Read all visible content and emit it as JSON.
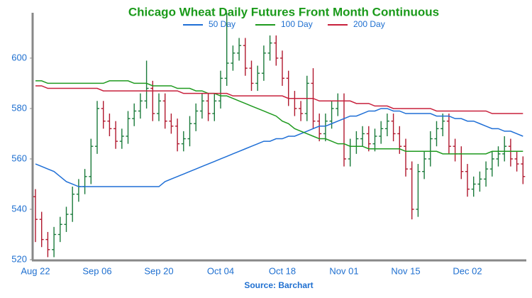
{
  "chart_data": {
    "type": "ohlc",
    "title": "Chicago Wheat Daily Futures Front Month Continuous",
    "source": "Source: Barchart",
    "categories": [
      "Aug 22",
      null,
      null,
      null,
      null,
      null,
      null,
      null,
      null,
      null,
      "Sep 06",
      null,
      null,
      null,
      null,
      null,
      null,
      null,
      null,
      null,
      "Sep 20",
      null,
      null,
      null,
      null,
      null,
      null,
      null,
      null,
      null,
      "Oct 04",
      null,
      null,
      null,
      null,
      null,
      null,
      null,
      null,
      null,
      "Oct 18",
      null,
      null,
      null,
      null,
      null,
      null,
      null,
      null,
      null,
      "Nov 01",
      null,
      null,
      null,
      null,
      null,
      null,
      null,
      null,
      null,
      "Nov 15",
      null,
      null,
      null,
      null,
      null,
      null,
      null,
      null,
      null,
      "Dec 02",
      null,
      null,
      null,
      null,
      null,
      null,
      null,
      null,
      null
    ],
    "open": [
      545,
      536,
      528,
      524,
      530,
      534,
      538,
      546,
      549,
      553,
      565,
      580,
      575,
      572,
      567,
      569,
      576,
      579,
      583,
      588,
      578,
      583,
      575,
      573,
      566,
      568,
      574,
      579,
      583,
      578,
      583,
      592,
      598,
      602,
      605,
      596,
      590,
      594,
      602,
      606,
      600,
      592,
      584,
      580,
      578,
      590,
      575,
      570,
      575,
      580,
      583,
      560,
      565,
      568,
      570,
      566,
      569,
      572,
      575,
      570,
      565,
      556,
      540,
      555,
      560,
      568,
      572,
      575,
      565,
      562,
      555,
      548,
      550,
      552,
      556,
      560,
      562,
      565,
      560,
      558
    ],
    "high": [
      548,
      539,
      531,
      533,
      537,
      541,
      549,
      552,
      556,
      568,
      583,
      583,
      578,
      575,
      572,
      579,
      582,
      586,
      599,
      591,
      586,
      586,
      578,
      576,
      571,
      577,
      582,
      586,
      586,
      586,
      595,
      618,
      605,
      608,
      608,
      599,
      597,
      605,
      609,
      609,
      603,
      595,
      587,
      583,
      593,
      596,
      578,
      578,
      583,
      586,
      586,
      568,
      571,
      573,
      573,
      572,
      575,
      578,
      578,
      573,
      568,
      559,
      558,
      563,
      571,
      575,
      578,
      578,
      568,
      565,
      558,
      553,
      555,
      559,
      563,
      565,
      569,
      568,
      563,
      561
    ],
    "low": [
      527,
      525,
      521,
      521,
      527,
      531,
      535,
      543,
      546,
      550,
      562,
      572,
      569,
      564,
      564,
      566,
      573,
      576,
      580,
      575,
      575,
      572,
      570,
      563,
      563,
      565,
      571,
      576,
      575,
      575,
      580,
      589,
      595,
      599,
      593,
      587,
      587,
      591,
      599,
      597,
      589,
      581,
      577,
      575,
      575,
      572,
      567,
      567,
      572,
      577,
      557,
      557,
      562,
      565,
      563,
      563,
      566,
      569,
      567,
      562,
      553,
      536,
      537,
      552,
      557,
      565,
      569,
      562,
      559,
      552,
      545,
      545,
      547,
      549,
      553,
      557,
      559,
      557,
      555,
      550
    ],
    "close": [
      536,
      528,
      524,
      530,
      534,
      538,
      546,
      549,
      553,
      565,
      580,
      575,
      572,
      567,
      569,
      576,
      579,
      583,
      588,
      578,
      583,
      575,
      573,
      566,
      568,
      574,
      579,
      583,
      578,
      583,
      592,
      598,
      602,
      605,
      596,
      590,
      594,
      602,
      606,
      600,
      592,
      584,
      580,
      578,
      590,
      575,
      570,
      575,
      580,
      583,
      560,
      565,
      568,
      570,
      566,
      569,
      572,
      575,
      570,
      565,
      556,
      540,
      555,
      560,
      568,
      572,
      575,
      565,
      562,
      555,
      548,
      550,
      552,
      556,
      560,
      562,
      565,
      560,
      558,
      553
    ],
    "up_color": "#1a7a3a",
    "down_color": "#b0182e",
    "series": [
      {
        "name": "50 Day",
        "color": "#1f6fd6",
        "values": [
          558,
          557,
          556,
          555,
          553,
          551,
          550,
          549,
          549,
          549,
          549,
          549,
          549,
          549,
          549,
          549,
          549,
          549,
          549,
          549,
          549,
          551,
          552,
          553,
          554,
          555,
          556,
          557,
          558,
          559,
          560,
          561,
          562,
          563,
          564,
          565,
          566,
          567,
          567,
          568,
          568,
          569,
          569,
          570,
          571,
          572,
          573,
          573,
          574,
          575,
          576,
          577,
          577,
          578,
          579,
          579,
          580,
          580,
          579,
          579,
          578,
          578,
          578,
          578,
          578,
          577,
          577,
          577,
          576,
          576,
          575,
          575,
          574,
          573,
          572,
          572,
          571,
          571,
          570,
          569
        ]
      },
      {
        "name": "100 Day",
        "color": "#1f9a1f",
        "values": [
          591,
          591,
          590,
          590,
          590,
          590,
          590,
          590,
          590,
          590,
          590,
          590,
          591,
          591,
          591,
          591,
          590,
          590,
          590,
          589,
          589,
          589,
          589,
          588,
          588,
          588,
          587,
          587,
          586,
          586,
          585,
          585,
          584,
          583,
          582,
          581,
          580,
          579,
          578,
          577,
          575,
          574,
          572,
          571,
          570,
          569,
          568,
          568,
          567,
          566,
          566,
          565,
          565,
          565,
          564,
          564,
          564,
          564,
          564,
          564,
          563,
          563,
          563,
          563,
          563,
          563,
          562,
          562,
          562,
          562,
          562,
          562,
          562,
          562,
          563,
          563,
          563,
          563,
          563,
          563
        ]
      },
      {
        "name": "200 Day",
        "color": "#c8203c",
        "values": [
          589,
          589,
          588,
          588,
          588,
          588,
          588,
          588,
          588,
          588,
          588,
          587,
          587,
          587,
          587,
          587,
          587,
          587,
          587,
          587,
          587,
          587,
          587,
          587,
          586,
          586,
          586,
          586,
          586,
          586,
          586,
          586,
          585,
          585,
          585,
          585,
          585,
          585,
          585,
          585,
          585,
          584,
          584,
          584,
          584,
          584,
          583,
          583,
          583,
          583,
          583,
          583,
          582,
          582,
          582,
          581,
          581,
          581,
          580,
          580,
          580,
          580,
          580,
          580,
          580,
          579,
          579,
          579,
          579,
          579,
          579,
          579,
          579,
          579,
          578,
          578,
          578,
          578,
          578,
          578
        ]
      }
    ],
    "ylim": [
      520,
      618
    ],
    "yticks": [
      520,
      540,
      560,
      580,
      600
    ]
  }
}
